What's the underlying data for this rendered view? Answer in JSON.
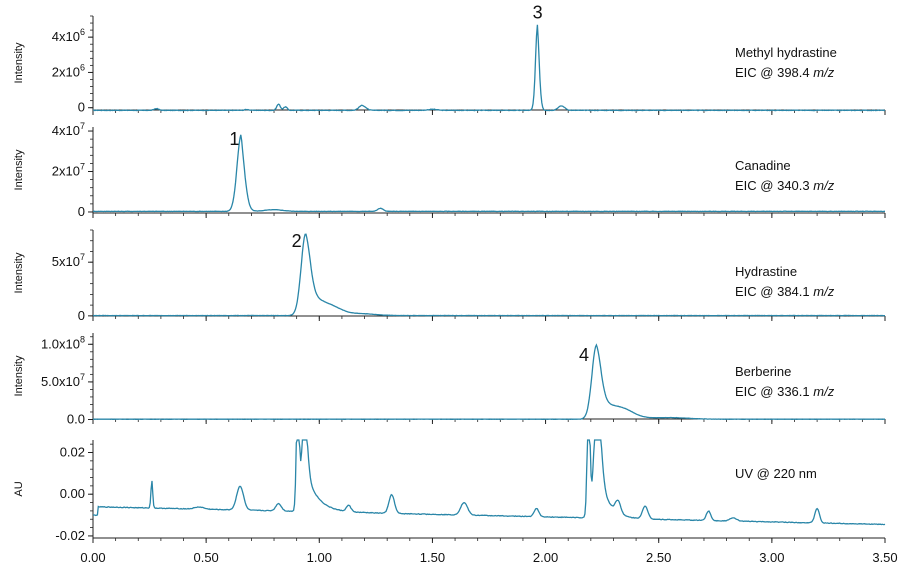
{
  "chart_data": {
    "type": "line",
    "trace_color": "#2a86a8",
    "axis_color": "#222222",
    "x_axis": {
      "min": 0.0,
      "max": 3.5,
      "ticks": [
        0.0,
        0.5,
        1.0,
        1.5,
        2.0,
        2.5,
        3.0,
        3.5
      ],
      "tick_labels": [
        "0.00",
        "0.50",
        "1.00",
        "1.50",
        "2.00",
        "2.50",
        "3.00",
        "3.50"
      ]
    },
    "panels": [
      {
        "id": "methyl-hydrastine",
        "ylabel": "Intensity",
        "label_line1": "Methyl hydrastine",
        "label_line2_prefix": "EIC @ 398.4 ",
        "label_line2_unit": "m/z",
        "ylim": [
          -300000,
          5200000
        ],
        "yticks": [
          0,
          2000000,
          4000000
        ],
        "ytick_labels": [
          {
            "mant": "0",
            "exp": ""
          },
          {
            "mant": "2x10",
            "exp": "6"
          },
          {
            "mant": "4x10",
            "exp": "6"
          }
        ],
        "peak_label": "3",
        "peak_label_x": 1.965,
        "peak_label_y": 5050000,
        "baseline": -150000,
        "noise": 30000,
        "series": [
          {
            "rt": 0.28,
            "h": 100000,
            "s": 0.01
          },
          {
            "rt": 0.68,
            "h": 50000,
            "s": 0.01
          },
          {
            "rt": 0.82,
            "h": 350000,
            "s": 0.008
          },
          {
            "rt": 0.85,
            "h": 200000,
            "s": 0.008
          },
          {
            "rt": 1.19,
            "h": 280000,
            "s": 0.015
          },
          {
            "rt": 1.5,
            "h": 60000,
            "s": 0.02
          },
          {
            "rt": 1.965,
            "h": 4900000,
            "s": 0.009,
            "tail": 0.006
          },
          {
            "rt": 2.07,
            "h": 250000,
            "s": 0.015
          }
        ]
      },
      {
        "id": "canadine",
        "ylabel": "Intensity",
        "label_line1": "Canadine",
        "label_line2_prefix": "EIC @ 340.3 ",
        "label_line2_unit": "m/z",
        "ylim": [
          -1500000,
          42000000
        ],
        "yticks": [
          0,
          20000000,
          40000000
        ],
        "ytick_labels": [
          {
            "mant": "0",
            "exp": ""
          },
          {
            "mant": "2x10",
            "exp": "7"
          },
          {
            "mant": "4x10",
            "exp": "7"
          }
        ],
        "peak_label": "1",
        "peak_label_x": 0.625,
        "peak_label_y": 33000000,
        "baseline": 300000,
        "noise": 150000,
        "series": [
          {
            "rt": 0.655,
            "h": 38000000,
            "s": 0.018,
            "tail": 0.012
          },
          {
            "rt": 0.8,
            "h": 800000,
            "s": 0.04
          },
          {
            "rt": 1.27,
            "h": 1500000,
            "s": 0.012
          }
        ]
      },
      {
        "id": "hydrastine",
        "ylabel": "Intensity",
        "label_line1": "Hydrastine",
        "label_line2_prefix": "EIC @ 384.1 ",
        "label_line2_unit": "m/z",
        "ylim": [
          -2000000,
          80000000
        ],
        "yticks": [
          0,
          50000000
        ],
        "ytick_labels": [
          {
            "mant": "0",
            "exp": ""
          },
          {
            "mant": "5x10",
            "exp": "7"
          }
        ],
        "peak_label": "2",
        "peak_label_x": 0.9,
        "peak_label_y": 64000000,
        "baseline": 300000,
        "noise": 200000,
        "series": [
          {
            "rt": 0.94,
            "h": 76000000,
            "s": 0.02,
            "tail": 0.06
          },
          {
            "rt": 1.05,
            "h": 5000000,
            "s": 0.05
          },
          {
            "rt": 1.2,
            "h": 1200000,
            "s": 0.05
          }
        ]
      },
      {
        "id": "berberine",
        "ylabel": "Intensity",
        "label_line1": "Berberine",
        "label_line2_prefix": "EIC @ 336.1 ",
        "label_line2_unit": "m/z",
        "ylim": [
          -2000000,
          115000000
        ],
        "yticks": [
          0,
          50000000,
          100000000
        ],
        "ytick_labels": [
          {
            "mant": "0.0",
            "exp": ""
          },
          {
            "mant": "5.0x10",
            "exp": "7"
          },
          {
            "mant": "1.0x10",
            "exp": "8"
          }
        ],
        "peak_label": "4",
        "peak_label_x": 2.17,
        "peak_label_y": 78000000,
        "baseline": 400000,
        "noise": 300000,
        "series": [
          {
            "rt": 2.225,
            "h": 98000000,
            "s": 0.02,
            "tail": 0.055
          },
          {
            "rt": 2.34,
            "h": 10000000,
            "s": 0.05
          },
          {
            "rt": 2.55,
            "h": 2000000,
            "s": 0.08
          }
        ]
      },
      {
        "id": "uv-220",
        "ylabel": "AU",
        "label_line1": "UV @ 220 nm",
        "label_line2_prefix": "",
        "label_line2_unit": "",
        "ylim": [
          -0.021,
          0.026
        ],
        "yticks": [
          -0.02,
          0.0,
          0.02
        ],
        "ytick_labels": [
          {
            "mant": "-0.02",
            "exp": ""
          },
          {
            "mant": "0.00",
            "exp": ""
          },
          {
            "mant": "0.02",
            "exp": ""
          }
        ],
        "peak_label": "",
        "peak_label_x": 0,
        "peak_label_y": 0,
        "baseline_start": -0.006,
        "baseline_end": -0.0145,
        "noise": 0.0003,
        "series": [
          {
            "rt": 0.26,
            "h": 0.013,
            "s": 0.004
          },
          {
            "rt": 0.47,
            "h": 0.001,
            "s": 0.02
          },
          {
            "rt": 0.65,
            "h": 0.0115,
            "s": 0.015
          },
          {
            "rt": 0.82,
            "h": 0.0035,
            "s": 0.012
          },
          {
            "rt": 0.905,
            "h": 0.06,
            "s": 0.006
          },
          {
            "rt": 0.935,
            "h": 0.05,
            "s": 0.012,
            "tail": 0.05
          },
          {
            "rt": 1.13,
            "h": 0.003,
            "s": 0.01
          },
          {
            "rt": 1.32,
            "h": 0.009,
            "s": 0.012
          },
          {
            "rt": 1.64,
            "h": 0.006,
            "s": 0.015
          },
          {
            "rt": 1.96,
            "h": 0.004,
            "s": 0.01
          },
          {
            "rt": 2.19,
            "h": 0.06,
            "s": 0.006
          },
          {
            "rt": 2.23,
            "h": 0.06,
            "s": 0.015,
            "tail": 0.04
          },
          {
            "rt": 2.32,
            "h": 0.006,
            "s": 0.012
          },
          {
            "rt": 2.44,
            "h": 0.006,
            "s": 0.012
          },
          {
            "rt": 2.72,
            "h": 0.0045,
            "s": 0.01
          },
          {
            "rt": 2.83,
            "h": 0.0015,
            "s": 0.015
          },
          {
            "rt": 3.2,
            "h": 0.007,
            "s": 0.01
          }
        ]
      }
    ]
  }
}
